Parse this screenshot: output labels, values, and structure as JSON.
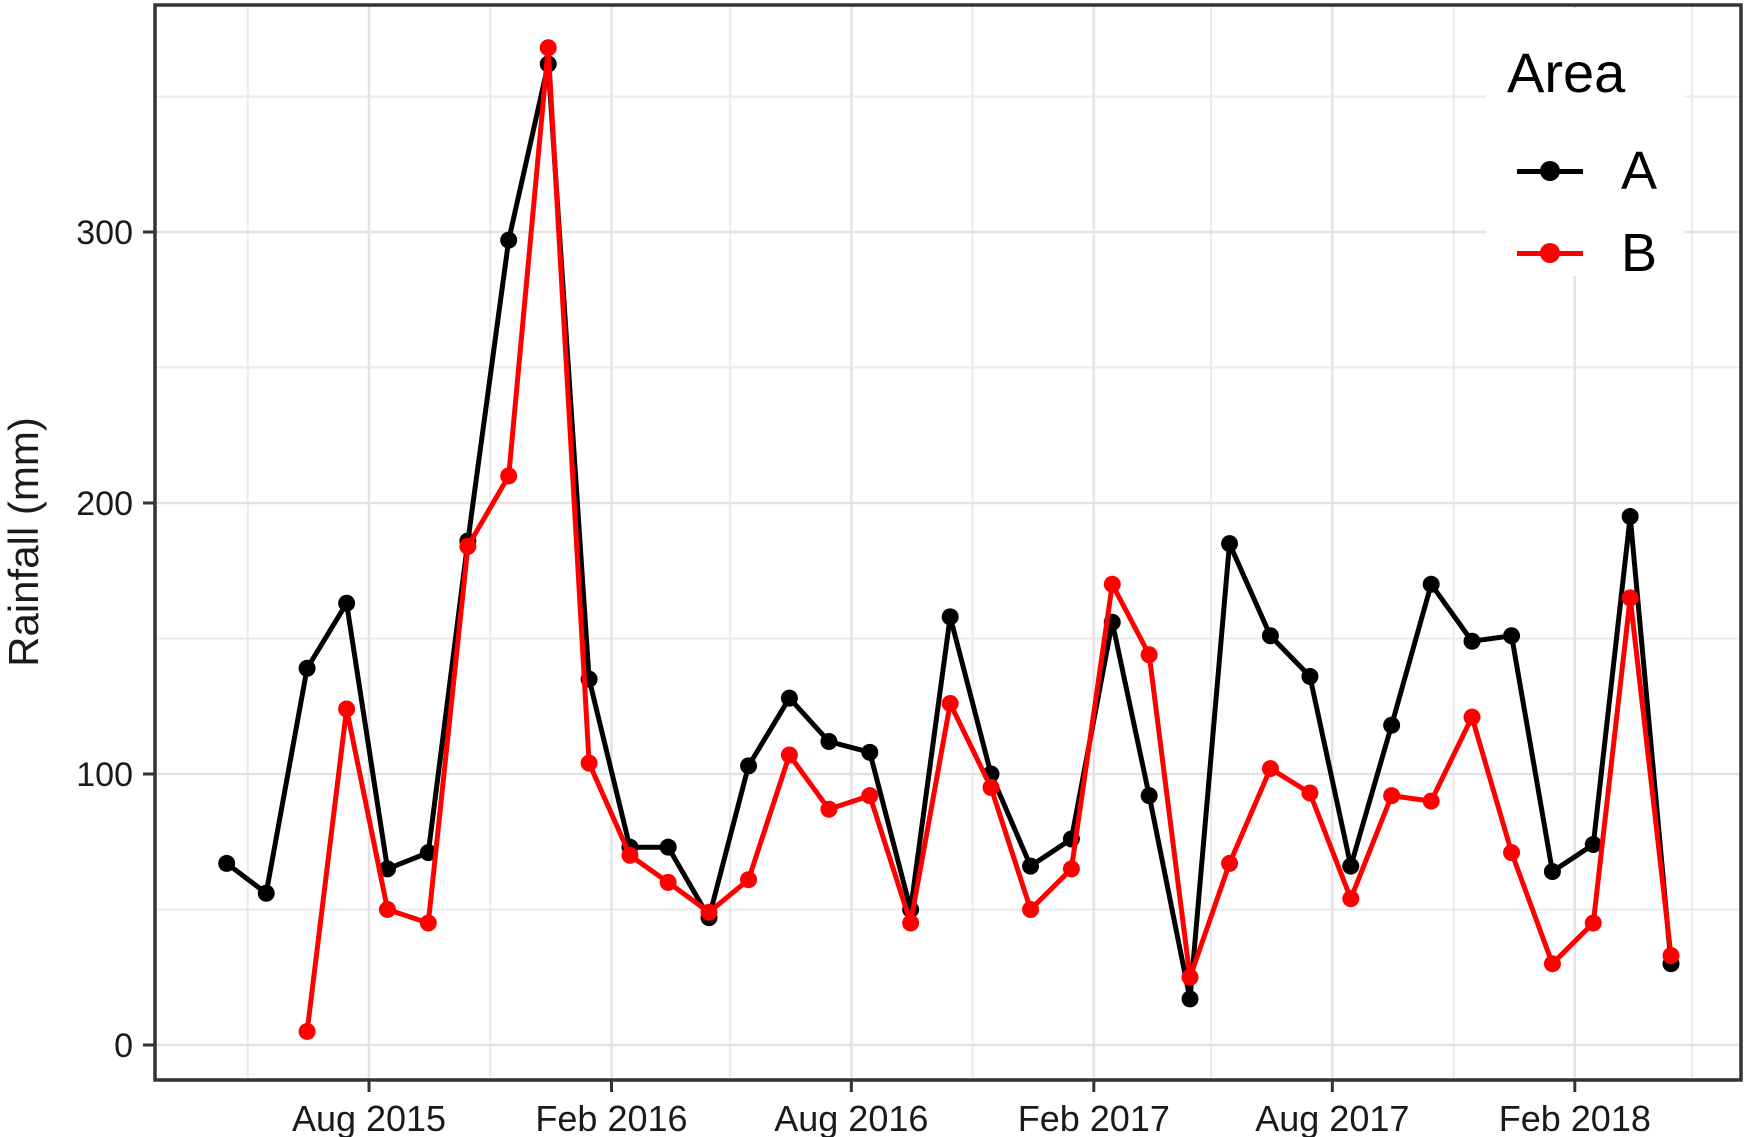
{
  "chart_data": {
    "type": "line",
    "title": "",
    "xlabel": "",
    "ylabel": "Rainfall (mm)",
    "legend_title": "Area",
    "legend_position": "top-right-inside",
    "background_color": "#FFFFFF",
    "panel_border_color": "#333333",
    "grid_major_color": "#E3E3E3",
    "grid_minor_color": "#EBEBEB",
    "text_color": "#1A1A1A",
    "ylim": [
      -13,
      386
    ],
    "y_major_ticks": [
      0,
      100,
      200,
      300
    ],
    "y_minor_gridlines": [
      50,
      150,
      250,
      350
    ],
    "x_major_ticks": [
      {
        "label": "Aug 2015",
        "date": "2015-08-01"
      },
      {
        "label": "Feb 2016",
        "date": "2016-02-01"
      },
      {
        "label": "Aug 2016",
        "date": "2016-08-01"
      },
      {
        "label": "Feb 2017",
        "date": "2017-02-01"
      },
      {
        "label": "Aug 2017",
        "date": "2017-08-01"
      },
      {
        "label": "Feb 2018",
        "date": "2018-02-01"
      }
    ],
    "x_minor_gridline_dates": [
      "2015-05-01",
      "2015-11-01",
      "2016-05-01",
      "2016-11-01",
      "2017-05-01",
      "2017-11-01",
      "2018-05-01"
    ],
    "categories": [
      "Apr 2015",
      "May 2015",
      "Jun 2015",
      "Jul 2015",
      "Aug 2015",
      "Sep 2015",
      "Oct 2015",
      "Nov 2015",
      "Dec 2015",
      "Jan 2016",
      "Feb 2016",
      "Mar 2016",
      "Apr 2016",
      "May 2016",
      "Jun 2016",
      "Jul 2016",
      "Aug 2016",
      "Sep 2016",
      "Oct 2016",
      "Nov 2016",
      "Dec 2016",
      "Jan 2017",
      "Feb 2017",
      "Mar 2017",
      "Apr 2017",
      "May 2017",
      "Jun 2017",
      "Jul 2017",
      "Aug 2017",
      "Sep 2017",
      "Oct 2017",
      "Nov 2017",
      "Dec 2017",
      "Jan 2018",
      "Feb 2018",
      "Mar 2018",
      "Apr 2018"
    ],
    "series": [
      {
        "name": "A",
        "color": "#000000",
        "values": [
          67,
          56,
          139,
          163,
          65,
          71,
          186,
          297,
          362,
          135,
          73,
          73,
          47,
          103,
          128,
          112,
          108,
          50,
          158,
          100,
          66,
          76,
          156,
          92,
          17,
          185,
          151,
          136,
          66,
          118,
          170,
          149,
          151,
          64,
          74,
          195,
          30
        ]
      },
      {
        "name": "B",
        "color": "#FF0000",
        "values": [
          null,
          null,
          5,
          124,
          50,
          45,
          184,
          210,
          368,
          104,
          70,
          60,
          49,
          61,
          107,
          87,
          92,
          45,
          126,
          95,
          50,
          65,
          170,
          144,
          25,
          67,
          102,
          93,
          54,
          92,
          90,
          121,
          71,
          30,
          45,
          165,
          33
        ]
      }
    ]
  }
}
